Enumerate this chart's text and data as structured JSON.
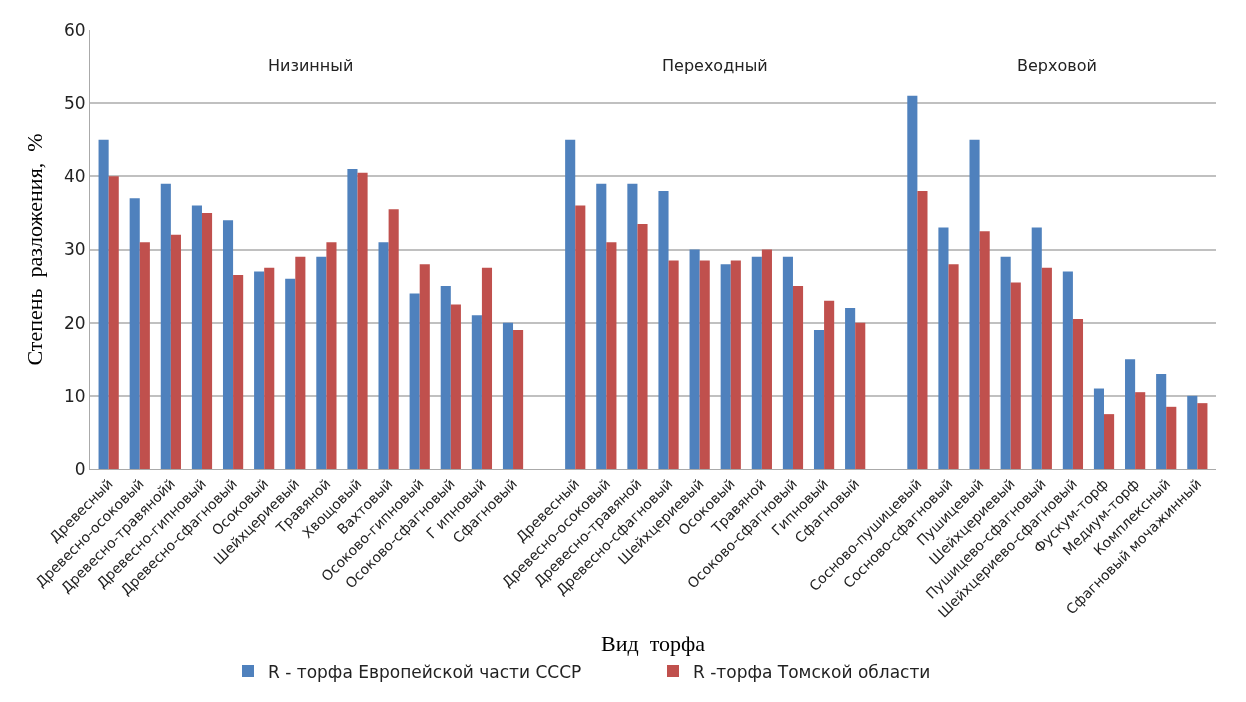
{
  "chart_data": {
    "type": "bar",
    "categories": [
      "Древесный",
      "Древесно-осоковый",
      "Древесно-травянойй",
      "Древесно-гипновый",
      "Древесно-сфагновый",
      "Осоковый",
      "Шейхцериевый",
      "Травяной",
      "Хвощовый",
      "Вахтовый",
      "Осоково-гипновый",
      "Осоково-сфагновый",
      "Г ипновый",
      "Сфагновый",
      null,
      "Древесный",
      "Древесно-осоковый",
      "Древесно-травяной",
      "Древесно-сфагновый",
      "Шейхцериевый",
      "Осоковый",
      "Травяной",
      "Осоково-сфагновый",
      "Гипновый",
      "Сфагновый",
      null,
      "Сосново-пушицевый",
      "Сосново-сфагновый",
      "Пушицевый",
      "Шейхцериевый",
      "Пушицево-сфагновый",
      "Шейхцериево-сфагновый",
      "Фускум-торф",
      "Медиум-торф",
      "Комплексный",
      "Сфагновый мочажинный"
    ],
    "series": [
      {
        "name": "R - торфа Европейской части СССР",
        "color": "#4f81bd",
        "values": [
          45,
          37,
          39,
          36,
          34,
          27,
          26,
          29,
          41,
          31,
          24,
          25,
          21,
          20,
          null,
          45,
          39,
          39,
          38,
          30,
          28,
          29,
          29,
          19,
          22,
          null,
          51,
          33,
          45,
          29,
          33,
          27,
          11,
          15,
          13,
          10
        ]
      },
      {
        "name": "R -торфа Томской области",
        "color": "#c0504d",
        "values": [
          40,
          31,
          32,
          35,
          26.5,
          27.5,
          29,
          31,
          40.5,
          35.5,
          28,
          22.5,
          27.5,
          19,
          null,
          36,
          31,
          33.5,
          28.5,
          28.5,
          28.5,
          30,
          25,
          23,
          20,
          null,
          38,
          28,
          32.5,
          25.5,
          27.5,
          20.5,
          7.5,
          10.5,
          8.5,
          9
        ]
      }
    ],
    "xlabel": "Вид  торфа",
    "ylabel": "Степень  разложения,  %",
    "annotations": [
      "Низинный",
      "Переходный",
      "Верховой"
    ],
    "ylim": [
      0,
      60
    ],
    "yticks": [
      0,
      10,
      20,
      30,
      40,
      50,
      60
    ],
    "grid": "y",
    "legend": "bottom"
  }
}
